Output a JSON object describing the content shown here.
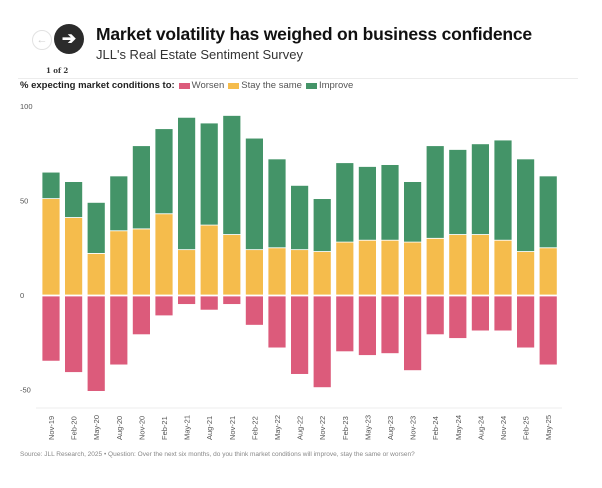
{
  "navigation": {
    "prev_icon": "arrow-left-icon",
    "next_icon": "arrow-right-icon",
    "prev_glyph": "←",
    "next_glyph": "➔",
    "page_count": "1 of 2"
  },
  "header": {
    "title": "Market volatility has weighed on business confidence",
    "subtitle": "JLL's Real Estate Sentiment Survey"
  },
  "legend": {
    "title": "% expecting market conditions to:",
    "items": [
      {
        "label": "Worsen",
        "color": "#dc5b7b"
      },
      {
        "label": "Stay the same",
        "color": "#f5bc4c"
      },
      {
        "label": "Improve",
        "color": "#449468"
      }
    ]
  },
  "footer": {
    "source": "Source: JLL Research, 2025 • Question: Over the next six months, do you think market conditions will improve, stay the same or worsen?"
  },
  "chart_data": {
    "type": "bar",
    "stacked": true,
    "title": "Market volatility has weighed on business confidence",
    "subtitle": "JLL's Real Estate Sentiment Survey",
    "xlabel": "",
    "ylabel": "% expecting market conditions to:",
    "ylim": [
      -55,
      100
    ],
    "yticks": [
      100,
      50,
      0,
      -50
    ],
    "grid": false,
    "legend_position": "top-left",
    "categories": [
      "Nov-19",
      "Feb-20",
      "May-20",
      "Aug-20",
      "Nov-20",
      "Feb-21",
      "May-21",
      "Aug-21",
      "Nov-21",
      "Feb-22",
      "May-22",
      "Aug-22",
      "Nov-22",
      "Feb-23",
      "May-23",
      "Aug-23",
      "Nov-23",
      "Feb-24",
      "May-24",
      "Aug-24",
      "Nov-24",
      "Feb-25",
      "May-25"
    ],
    "series": [
      {
        "name": "Worsen",
        "color": "#dc5b7b",
        "values": [
          -35,
          -41,
          -51,
          -37,
          -21,
          -11,
          -5,
          -8,
          -5,
          -16,
          -28,
          -42,
          -49,
          -30,
          -32,
          -31,
          -40,
          -21,
          -23,
          -19,
          -19,
          -28,
          -37
        ]
      },
      {
        "name": "Stay the same",
        "color": "#f5bc4c",
        "values": [
          51,
          41,
          22,
          34,
          35,
          43,
          24,
          37,
          32,
          24,
          25,
          24,
          23,
          28,
          29,
          29,
          28,
          30,
          32,
          32,
          29,
          23,
          25
        ]
      },
      {
        "name": "Improve",
        "color": "#449468",
        "values": [
          14,
          19,
          27,
          29,
          44,
          45,
          70,
          54,
          63,
          59,
          47,
          34,
          28,
          42,
          39,
          40,
          32,
          49,
          45,
          48,
          53,
          49,
          38
        ]
      }
    ]
  }
}
